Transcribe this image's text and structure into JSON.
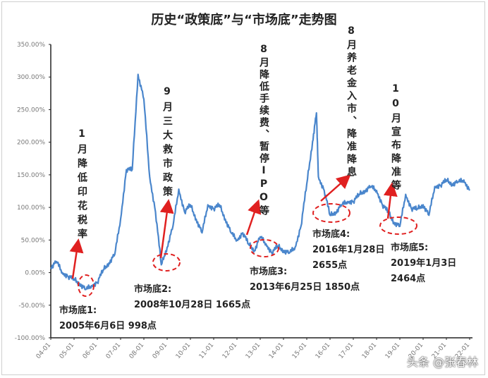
{
  "chart_data": {
    "type": "line",
    "title": "历史“政策底”与“市场底”走势图",
    "xlabel": "",
    "ylabel": "",
    "ylim": [
      -100,
      350
    ],
    "yticks": [
      350,
      300,
      250,
      200,
      150,
      100,
      50,
      0,
      -50,
      -100
    ],
    "ytick_labels": [
      "350.00%",
      "300.00%",
      "250.00%",
      "200.00%",
      "150.00%",
      "100.00%",
      "50.00%",
      "0.00%",
      "-50.00%",
      "-100.00%"
    ],
    "xtick_labels": [
      "04-01",
      "05-01",
      "06-01",
      "07-01",
      "08-01",
      "09-01",
      "10-01",
      "11-01",
      "12-01",
      "13-01",
      "14-01",
      "15-01",
      "16-01",
      "17-01",
      "18-01",
      "19-01",
      "20-01",
      "21-01",
      "22-01"
    ],
    "grid": false,
    "line_color": "#4a86cc",
    "x": [
      "2004-01",
      "2004-04",
      "2004-07",
      "2004-10",
      "2005-01",
      "2005-04",
      "2005-07",
      "2005-10",
      "2006-01",
      "2006-04",
      "2006-07",
      "2006-10",
      "2007-01",
      "2007-04",
      "2007-07",
      "2007-10",
      "2008-01",
      "2008-04",
      "2008-07",
      "2008-10",
      "2009-01",
      "2009-04",
      "2009-07",
      "2009-10",
      "2010-01",
      "2010-04",
      "2010-07",
      "2010-10",
      "2011-01",
      "2011-04",
      "2011-07",
      "2011-10",
      "2012-01",
      "2012-04",
      "2012-07",
      "2012-10",
      "2013-01",
      "2013-04",
      "2013-07",
      "2013-10",
      "2014-01",
      "2014-04",
      "2014-07",
      "2014-10",
      "2015-01",
      "2015-04",
      "2015-06",
      "2015-07",
      "2015-10",
      "2016-01",
      "2016-04",
      "2016-07",
      "2016-10",
      "2017-01",
      "2017-04",
      "2017-07",
      "2017-10",
      "2018-01",
      "2018-04",
      "2018-07",
      "2018-10",
      "2019-01",
      "2019-04",
      "2019-07",
      "2019-10",
      "2020-01",
      "2020-04",
      "2020-07",
      "2020-10",
      "2021-01",
      "2021-04",
      "2021-07",
      "2021-10",
      "2022-01"
    ],
    "values": [
      8,
      17,
      0,
      -6,
      -10,
      -17,
      -26,
      -20,
      -15,
      4,
      15,
      28,
      82,
      158,
      158,
      304,
      266,
      147,
      93,
      12,
      39,
      71,
      128,
      93,
      104,
      82,
      61,
      104,
      98,
      104,
      82,
      61,
      50,
      61,
      44,
      34,
      55,
      44,
      30,
      41,
      34,
      30,
      39,
      71,
      136,
      201,
      245,
      147,
      126,
      88,
      93,
      104,
      109,
      109,
      120,
      126,
      132,
      126,
      104,
      93,
      77,
      71,
      120,
      98,
      98,
      104,
      88,
      132,
      134,
      142,
      136,
      139,
      142,
      126
    ],
    "annotations": {
      "policies": [
        {
          "text": "1月降低印花税率"
        },
        {
          "text": "9月三大救市政策"
        },
        {
          "text": "8月降低手续费、暂停IPO等"
        },
        {
          "text": "8月养老金入市、降准降息"
        },
        {
          "text": "10月宣布降准等"
        }
      ],
      "bottoms": [
        {
          "label": "市场底1:",
          "line1": "2005年6月6日 998点",
          "line2": ""
        },
        {
          "label": "市场底2:",
          "line1": "2008年10月28日 1665点",
          "line2": ""
        },
        {
          "label": "市场底3:",
          "line1": "2013年6月25日 1850点",
          "line2": ""
        },
        {
          "label": "市场底4:",
          "line1": "2016年1月28日",
          "line2": "2655点"
        },
        {
          "label": "市场底5:",
          "line1": "2019年1月3日",
          "line2": "2464点"
        }
      ],
      "arrow_color": "#e02020",
      "ellipse_color": "#e02020"
    }
  },
  "watermark": "头条 @张春林"
}
